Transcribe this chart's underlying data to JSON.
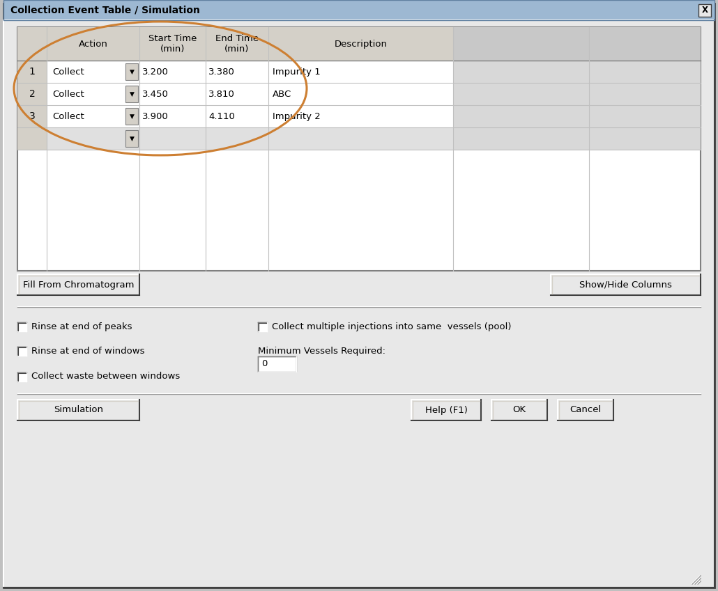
{
  "title": "Collection Event Table / Simulation",
  "bg_outer": "#c0c0c0",
  "bg_dialog": "#e8e8e8",
  "bg_titlebar": "#9db8d2",
  "bg_table": "#ffffff",
  "bg_header": "#d4d0c8",
  "bg_numcell": "#d4d0c8",
  "bg_gray_col": "#c8c8c8",
  "bg_row_even": "#ffffff",
  "bg_row_odd": "#f0f0f0",
  "bg_empty_row": "#e0e0e0",
  "title_text_color": "#000000",
  "rows": [
    {
      "num": "1",
      "action": "Collect",
      "start": "3.200",
      "end": "3.380",
      "desc": "Impurity 1"
    },
    {
      "num": "2",
      "action": "Collect",
      "start": "3.450",
      "end": "3.810",
      "desc": "ABC"
    },
    {
      "num": "3",
      "action": "Collect",
      "start": "3.900",
      "end": "4.110",
      "desc": "Impurity 2"
    },
    {
      "num": "",
      "action": "",
      "start": "",
      "end": "",
      "desc": ""
    }
  ],
  "btn1_labels": [
    "Fill From Chromatogram",
    "Show/Hide Columns"
  ],
  "checkboxes_left": [
    "Rinse at end of peaks",
    "Rinse at end of windows",
    "Collect waste between windows"
  ],
  "checkbox_right": "Collect multiple injections into same  vessels (pool)",
  "min_vessels_label": "Minimum Vessels Required:",
  "min_vessels_value": "0",
  "btn2_labels": [
    "Simulation",
    "Help (F1)",
    "OK",
    "Cancel"
  ],
  "ellipse_color": "#cd7f32",
  "ellipse_lw": 2.2,
  "border_color": "#808080",
  "text_color": "#000000"
}
